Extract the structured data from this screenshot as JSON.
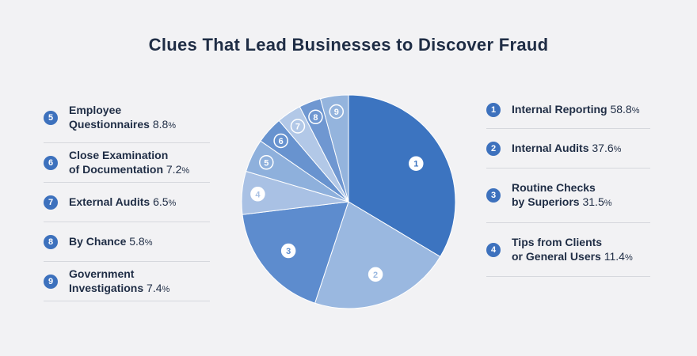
{
  "title": "Clues That Lead Businesses to Discover Fraud",
  "colors": {
    "slice_1": "#3c74c0",
    "slice_2": "#9ab8e0",
    "slice_3": "#5d8cce",
    "slice_4": "#a9c1e4",
    "slice_5": "#8eb0dc",
    "slice_6": "#6893cf",
    "slice_7": "#b2c8e7",
    "slice_8": "#6f97d1",
    "slice_9": "#94b4dd",
    "badge": "#3d71bd",
    "background": "#f2f2f4"
  },
  "chart_data": {
    "type": "pie",
    "title": "Clues That Lead Businesses to Discover Fraud",
    "slices": [
      {
        "id": "1",
        "lines": [
          "Internal Reporting"
        ],
        "value": 58.8
      },
      {
        "id": "2",
        "lines": [
          "Internal Audits"
        ],
        "value": 37.6
      },
      {
        "id": "3",
        "lines": [
          "Routine Checks",
          "by Superiors"
        ],
        "value": 31.5
      },
      {
        "id": "4",
        "lines": [
          "Tips from Clients",
          "or General Users"
        ],
        "value": 11.4
      },
      {
        "id": "5",
        "lines": [
          "Employee",
          "Questionnaires"
        ],
        "value": 8.8
      },
      {
        "id": "6",
        "lines": [
          "Close Examination",
          "of Documentation"
        ],
        "value": 7.2
      },
      {
        "id": "7",
        "lines": [
          "External Audits"
        ],
        "value": 6.5
      },
      {
        "id": "8",
        "lines": [
          "By Chance"
        ],
        "value": 5.8
      },
      {
        "id": "9",
        "lines": [
          "Government",
          "Investigations"
        ],
        "value": 7.4
      }
    ],
    "unit": "%",
    "legend_placement": "left-and-right"
  }
}
